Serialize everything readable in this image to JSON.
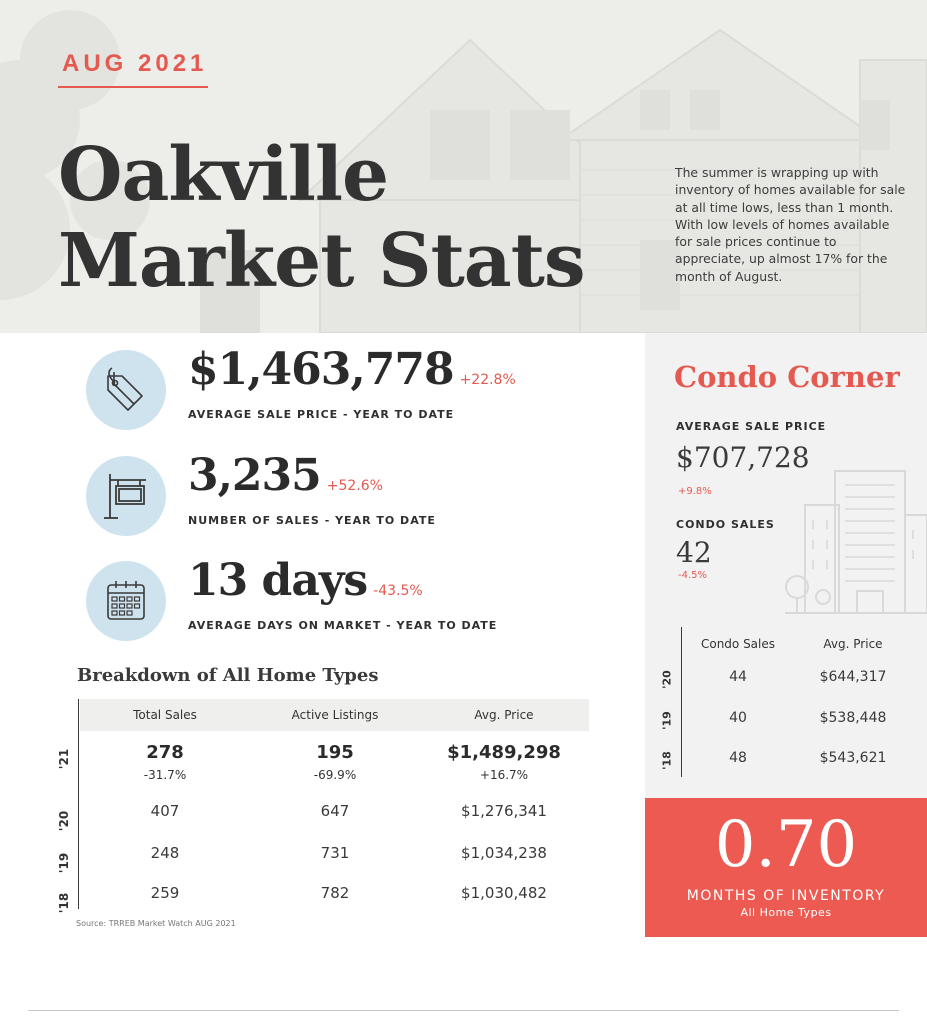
{
  "hero": {
    "date_tag": "AUG 2021",
    "title_line1": "Oakville",
    "title_line2": "Market Stats",
    "intro": "The summer is wrapping up with inventory of homes available for sale at all time lows, less than 1 month.  With low levels of homes available for sale prices continue to appreciate, up almost 17% for the month of August."
  },
  "stats": [
    {
      "value": "$1,463,778",
      "change": "+22.8%",
      "label": "AVERAGE SALE PRICE - YEAR TO DATE",
      "icon": "price-tag-icon"
    },
    {
      "value": "3,235",
      "change": "+52.6%",
      "label": "NUMBER OF SALES - YEAR TO DATE",
      "icon": "sale-sign-icon"
    },
    {
      "value": "13 days",
      "change": "-43.5%",
      "label": "AVERAGE DAYS ON MARKET - YEAR TO DATE",
      "icon": "calendar-icon"
    }
  ],
  "breakdown": {
    "title": "Breakdown of All Home Types",
    "headers": [
      "Total Sales",
      "Active Listings",
      "Avg. Price"
    ],
    "rows": [
      {
        "year": "'21",
        "cells": [
          "278",
          "195",
          "$1,489,298"
        ],
        "changes": [
          "-31.7%",
          "-69.9%",
          "+16.7%"
        ]
      },
      {
        "year": "'20",
        "cells": [
          "407",
          "647",
          "$1,276,341"
        ]
      },
      {
        "year": "'19",
        "cells": [
          "248",
          "731",
          "$1,034,238"
        ]
      },
      {
        "year": "'18",
        "cells": [
          "259",
          "782",
          "$1,030,482"
        ]
      }
    ],
    "source": "Source: TRREB Market Watch AUG 2021"
  },
  "condo": {
    "title": "Condo Corner",
    "avg_price_label": "AVERAGE SALE PRICE",
    "avg_price_value": "$707,728",
    "avg_price_change": "+9.8%",
    "sales_label": "CONDO SALES",
    "sales_value": "42",
    "sales_change": "-4.5%",
    "table_headers": [
      "Condo Sales",
      "Avg. Price"
    ],
    "rows": [
      {
        "year": "'20",
        "cells": [
          "44",
          "$644,317"
        ]
      },
      {
        "year": "'19",
        "cells": [
          "40",
          "$538,448"
        ]
      },
      {
        "year": "'18",
        "cells": [
          "48",
          "$543,621"
        ]
      }
    ]
  },
  "inventory": {
    "value": "0.70",
    "label": "MONTHS OF INVENTORY",
    "sub": "All Home Types"
  },
  "colors": {
    "accent": "#e45a50",
    "icon_circle": "#cfe3ef",
    "inventory_bg": "#ec5a52",
    "panel_bg": "#f2f2f2"
  }
}
